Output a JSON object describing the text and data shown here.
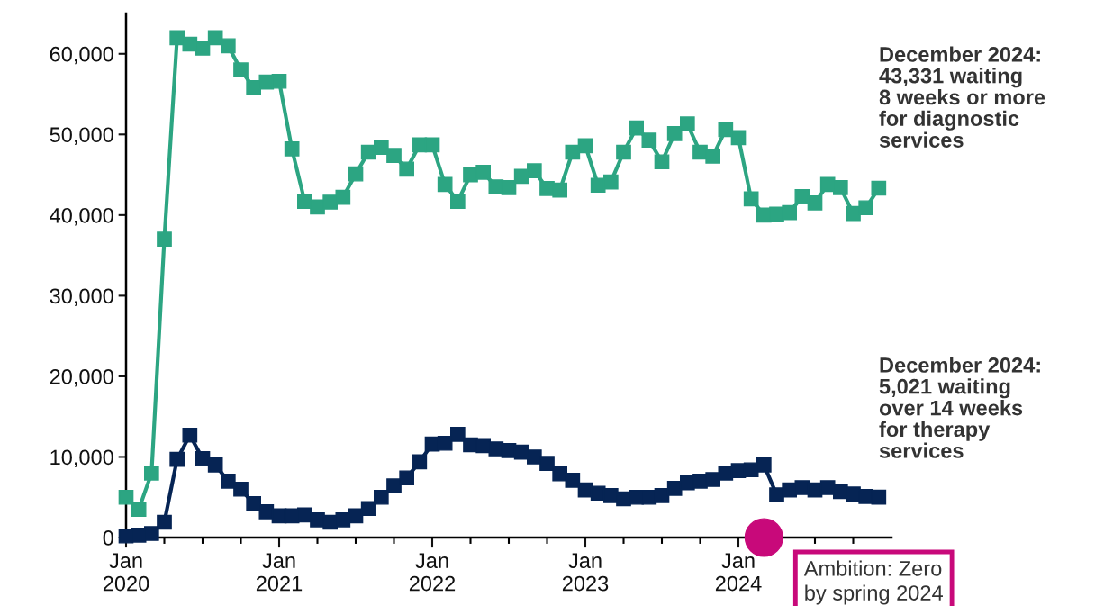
{
  "chart_data": {
    "type": "line",
    "x": [
      "2020-01",
      "2020-02",
      "2020-03",
      "2020-04",
      "2020-05",
      "2020-06",
      "2020-07",
      "2020-08",
      "2020-09",
      "2020-10",
      "2020-11",
      "2020-12",
      "2021-01",
      "2021-02",
      "2021-03",
      "2021-04",
      "2021-05",
      "2021-06",
      "2021-07",
      "2021-08",
      "2021-09",
      "2021-10",
      "2021-11",
      "2021-12",
      "2022-01",
      "2022-02",
      "2022-03",
      "2022-04",
      "2022-05",
      "2022-06",
      "2022-07",
      "2022-08",
      "2022-09",
      "2022-10",
      "2022-11",
      "2022-12",
      "2023-01",
      "2023-02",
      "2023-03",
      "2023-04",
      "2023-05",
      "2023-06",
      "2023-07",
      "2023-08",
      "2023-09",
      "2023-10",
      "2023-11",
      "2023-12",
      "2024-01",
      "2024-02",
      "2024-03",
      "2024-04",
      "2024-05",
      "2024-06",
      "2024-07",
      "2024-08",
      "2024-09",
      "2024-10",
      "2024-11",
      "2024-12"
    ],
    "series": [
      {
        "color": "#2ca582",
        "values": [
          5000,
          3500,
          8000,
          37000,
          62000,
          61200,
          60700,
          62000,
          61000,
          58000,
          55800,
          56500,
          56600,
          48200,
          41700,
          41000,
          41600,
          42200,
          45100,
          47800,
          48400,
          47400,
          45700,
          48700,
          48700,
          43800,
          41700,
          45000,
          45300,
          43500,
          43400,
          44800,
          45500,
          43300,
          43100,
          47800,
          48600,
          43700,
          44100,
          47800,
          50800,
          49300,
          46600,
          50100,
          51300,
          47800,
          47300,
          50600,
          49600,
          42000,
          40000,
          40100,
          40300,
          42300,
          41500,
          43800,
          43400,
          40200,
          40900,
          43331
        ]
      },
      {
        "color": "#062454",
        "values": [
          200,
          300,
          500,
          1900,
          9700,
          12700,
          9800,
          9000,
          7000,
          6000,
          4200,
          3200,
          2700,
          2700,
          2800,
          2200,
          1900,
          2200,
          2700,
          3600,
          5000,
          6400,
          7400,
          9400,
          11600,
          11700,
          12800,
          11500,
          11400,
          11000,
          10800,
          10600,
          10000,
          9200,
          7900,
          7100,
          5900,
          5500,
          5200,
          4800,
          5000,
          5000,
          5200,
          6100,
          6800,
          7000,
          7200,
          8000,
          8300,
          8400,
          9000,
          5300,
          5900,
          6200,
          5900,
          6200,
          5700,
          5400,
          5100,
          5021
        ]
      },
      {
        "type": "scatter",
        "x": [
          "2024-03"
        ],
        "color": "#c8097a",
        "values": [
          0
        ],
        "marker": "circle"
      }
    ],
    "marker": "square",
    "line_style": "solid",
    "grid": false,
    "legend": false,
    "ylim": [
      0,
      65000
    ],
    "yticks": [
      {
        "value": 0,
        "label": "0"
      },
      {
        "value": 10000,
        "label": "10,000"
      },
      {
        "value": 20000,
        "label": "20,000"
      },
      {
        "value": 30000,
        "label": "30,000"
      },
      {
        "value": 40000,
        "label": "40,000"
      },
      {
        "value": 50000,
        "label": "50,000"
      },
      {
        "value": 60000,
        "label": "60,000"
      }
    ],
    "xlim": [
      "2020-01",
      "2025-01"
    ],
    "xticks": [
      {
        "value": "2020-01",
        "label": "Jan\n2020"
      },
      {
        "value": "2020-04",
        "label": null
      },
      {
        "value": "2020-07",
        "label": null
      },
      {
        "value": "2020-10",
        "label": null
      },
      {
        "value": "2021-01",
        "label": "Jan\n2021"
      },
      {
        "value": "2021-04",
        "label": null
      },
      {
        "value": "2021-07",
        "label": null
      },
      {
        "value": "2021-10",
        "label": null
      },
      {
        "value": "2022-01",
        "label": "Jan\n2022"
      },
      {
        "value": "2022-04",
        "label": null
      },
      {
        "value": "2022-07",
        "label": null
      },
      {
        "value": "2022-10",
        "label": null
      },
      {
        "value": "2023-01",
        "label": "Jan\n2023"
      },
      {
        "value": "2023-04",
        "label": null
      },
      {
        "value": "2023-07",
        "label": null
      },
      {
        "value": "2023-10",
        "label": null
      },
      {
        "value": "2024-01",
        "label": "Jan\n2024"
      },
      {
        "value": "2024-04",
        "label": null
      },
      {
        "value": "2024-07",
        "label": null
      },
      {
        "value": "2024-10",
        "label": null
      }
    ],
    "annotations": [
      "December 2024:\n43,331 waiting\n8 weeks or more\nfor diagnostic\nservices",
      "December 2024:\n5,021 waiting\nover 14 weeks\nfor therapy\nservices",
      {
        "text": "Ambition: Zero\nby spring 2024",
        "x": "2024-03",
        "y": 0
      }
    ]
  }
}
